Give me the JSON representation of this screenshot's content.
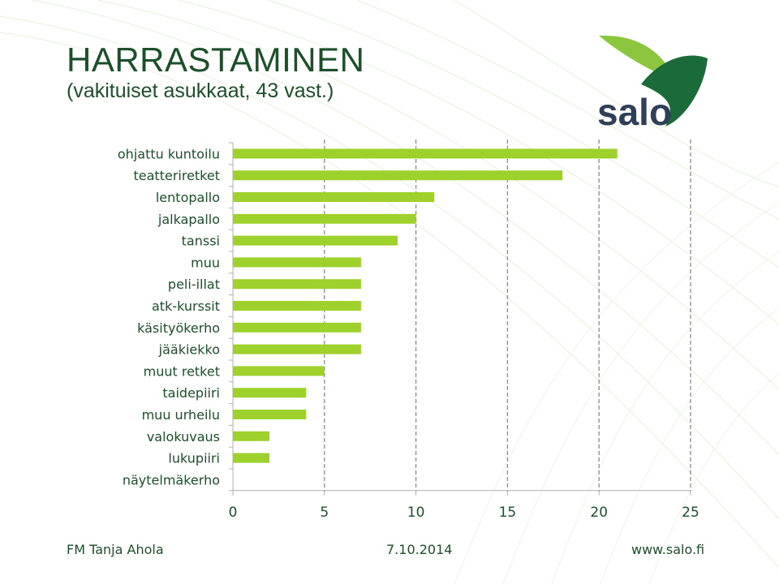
{
  "header": {
    "title": "HARRASTAMINEN",
    "subtitle": "(vakituiset asukkaat, 43 vast.)"
  },
  "logo": {
    "text": "salo",
    "icon": "salo-leaf-logo"
  },
  "footer": {
    "author": "FM Tanja Ahola",
    "date": "7.10.2014",
    "website": "www.salo.fi"
  },
  "colors": {
    "bar": "#9ed12b",
    "text_dark": "#1c4f2a",
    "logo_green": "#8cc63f",
    "logo_dark_green": "#1b6b3a",
    "logo_text": "#2f3f57"
  },
  "chart_data": {
    "type": "bar",
    "orientation": "horizontal",
    "categories": [
      "ohjattu kuntoilu",
      "teatteriretket",
      "lentopallo",
      "jalkapallo",
      "tanssi",
      "muu",
      "peli-illat",
      "atk-kurssit",
      "käsityökerho",
      "jääkiekko",
      "muut retket",
      "taidepiiri",
      "muu urheilu",
      "valokuvaus",
      "lukupiiri",
      "näytelmäkerho"
    ],
    "values": [
      21,
      18,
      11,
      10,
      9,
      7,
      7,
      7,
      7,
      7,
      5,
      4,
      4,
      2,
      2,
      0
    ],
    "xlim": [
      0,
      25
    ],
    "xticks": [
      "0",
      "5",
      "10",
      "15",
      "20",
      "25"
    ],
    "grid": "vertical dashed",
    "legend": "none"
  }
}
